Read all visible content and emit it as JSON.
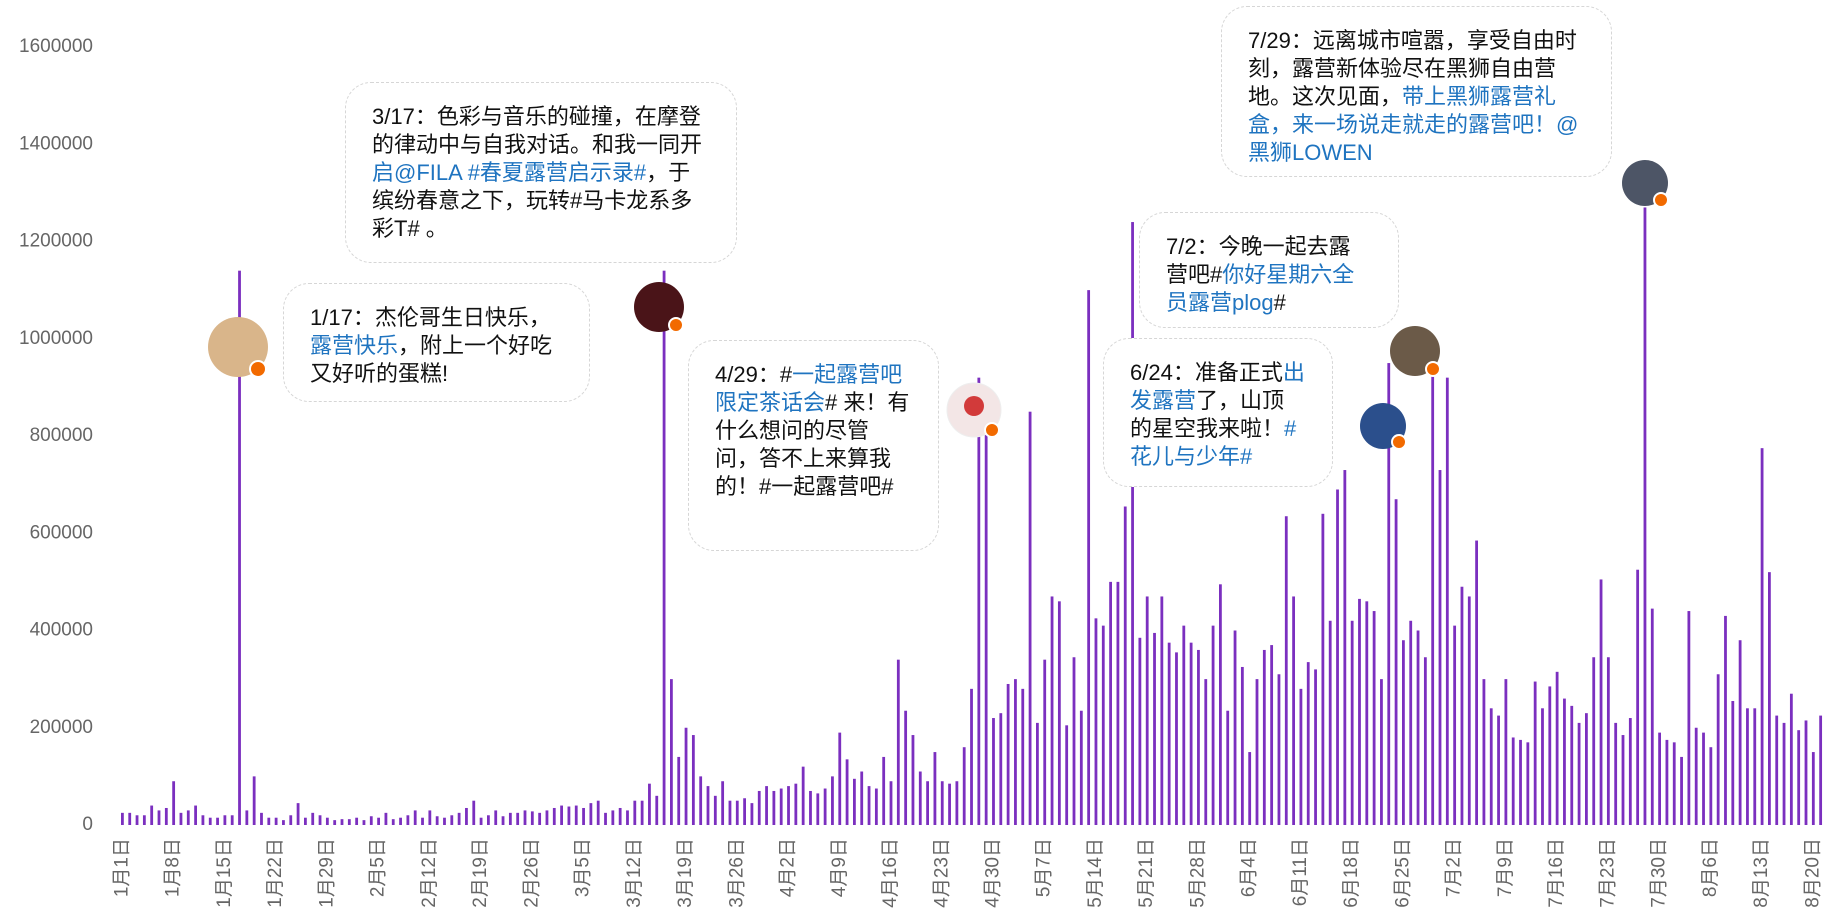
{
  "chart_data": {
    "type": "bar",
    "color": "#7b2fbf",
    "ylim": [
      0,
      1600000
    ],
    "yticks": [
      0,
      200000,
      400000,
      600000,
      800000,
      1000000,
      1200000,
      1400000,
      1600000
    ],
    "categories": [
      "1月1日",
      null,
      null,
      null,
      null,
      null,
      null,
      "1月8日",
      null,
      null,
      null,
      null,
      null,
      null,
      "1月15日",
      null,
      null,
      null,
      null,
      null,
      null,
      "1月22日",
      null,
      null,
      null,
      null,
      null,
      null,
      "1月29日",
      null,
      null,
      null,
      null,
      null,
      null,
      "2月5日",
      null,
      null,
      null,
      null,
      null,
      null,
      "2月12日",
      null,
      null,
      null,
      null,
      null,
      null,
      "2月19日",
      null,
      null,
      null,
      null,
      null,
      null,
      "2月26日",
      null,
      null,
      null,
      null,
      null,
      null,
      "3月5日",
      null,
      null,
      null,
      null,
      null,
      null,
      "3月12日",
      null,
      null,
      null,
      null,
      null,
      null,
      "3月19日",
      null,
      null,
      null,
      null,
      null,
      null,
      "3月26日",
      null,
      null,
      null,
      null,
      null,
      null,
      "4月2日",
      null,
      null,
      null,
      null,
      null,
      null,
      "4月9日",
      null,
      null,
      null,
      null,
      null,
      null,
      "4月16日",
      null,
      null,
      null,
      null,
      null,
      null,
      "4月23日",
      null,
      null,
      null,
      null,
      null,
      null,
      "4月30日",
      null,
      null,
      null,
      null,
      null,
      null,
      "5月7日",
      null,
      null,
      null,
      null,
      null,
      null,
      "5月14日",
      null,
      null,
      null,
      null,
      null,
      null,
      "5月21日",
      null,
      null,
      null,
      null,
      null,
      null,
      "5月28日",
      null,
      null,
      null,
      null,
      null,
      null,
      "6月4日",
      null,
      null,
      null,
      null,
      null,
      null,
      "6月11日",
      null,
      null,
      null,
      null,
      null,
      null,
      "6月18日",
      null,
      null,
      null,
      null,
      null,
      null,
      "6月25日",
      null,
      null,
      null,
      null,
      null,
      null,
      "7月2日",
      null,
      null,
      null,
      null,
      null,
      null,
      "7月9日",
      null,
      null,
      null,
      null,
      null,
      null,
      "7月16日",
      null,
      null,
      null,
      null,
      null,
      null,
      "7月23日",
      null,
      null,
      null,
      null,
      null,
      null,
      "7月30日",
      null,
      null,
      null,
      null,
      null,
      null,
      "8月6日",
      null,
      null,
      null,
      null,
      null,
      null,
      "8月13日",
      null,
      null,
      null,
      null,
      null,
      null,
      "8月20日",
      null
    ],
    "values": [
      25000,
      25000,
      20000,
      20000,
      40000,
      30000,
      35000,
      90000,
      25000,
      30000,
      40000,
      20000,
      15000,
      15000,
      20000,
      20000,
      1140000,
      30000,
      100000,
      25000,
      15000,
      15000,
      10000,
      20000,
      45000,
      15000,
      25000,
      20000,
      15000,
      10000,
      12000,
      12000,
      15000,
      10000,
      18000,
      15000,
      25000,
      12000,
      15000,
      20000,
      30000,
      15000,
      30000,
      18000,
      15000,
      20000,
      25000,
      35000,
      50000,
      15000,
      20000,
      30000,
      18000,
      25000,
      25000,
      30000,
      28000,
      25000,
      30000,
      35000,
      40000,
      38000,
      40000,
      35000,
      45000,
      50000,
      25000,
      30000,
      35000,
      30000,
      50000,
      50000,
      85000,
      60000,
      1140000,
      300000,
      140000,
      200000,
      185000,
      100000,
      80000,
      60000,
      90000,
      50000,
      50000,
      55000,
      45000,
      70000,
      80000,
      70000,
      75000,
      80000,
      85000,
      120000,
      70000,
      65000,
      75000,
      100000,
      190000,
      135000,
      95000,
      110000,
      80000,
      75000,
      140000,
      90000,
      340000,
      235000,
      185000,
      110000,
      90000,
      150000,
      90000,
      85000,
      90000,
      160000,
      280000,
      920000,
      870000,
      220000,
      230000,
      290000,
      300000,
      280000,
      850000,
      210000,
      340000,
      470000,
      460000,
      205000,
      345000,
      235000,
      1100000,
      425000,
      410000,
      500000,
      500000,
      655000,
      1240000,
      385000,
      470000,
      395000,
      470000,
      375000,
      355000,
      410000,
      375000,
      360000,
      300000,
      410000,
      495000,
      235000,
      400000,
      325000,
      150000,
      300000,
      360000,
      370000,
      310000,
      635000,
      470000,
      280000,
      335000,
      320000,
      640000,
      420000,
      690000,
      730000,
      420000,
      465000,
      460000,
      440000,
      300000,
      950000,
      670000,
      380000,
      420000,
      400000,
      345000,
      940000,
      730000,
      920000,
      410000,
      490000,
      470000,
      585000,
      300000,
      240000,
      225000,
      300000,
      180000,
      175000,
      170000,
      295000,
      240000,
      285000,
      315000,
      260000,
      245000,
      210000,
      230000,
      345000,
      505000,
      345000,
      210000,
      185000,
      220000,
      525000,
      1270000,
      445000,
      190000,
      175000,
      170000,
      140000,
      440000,
      200000,
      190000,
      160000,
      310000,
      430000,
      255000,
      380000,
      240000,
      240000,
      775000,
      520000,
      225000,
      210000,
      270000,
      195000,
      215000,
      150000,
      225000
    ],
    "annotations": [
      {
        "parts": [
          {
            "text": "1/17：杰伦哥生日快乐，"
          },
          {
            "text": "露营快乐",
            "link": true
          },
          {
            "text": "，附上一个好吃又好听的蛋糕!"
          }
        ]
      },
      {
        "parts": [
          {
            "text": "3/17：色彩与音乐的碰撞，在摩登的律动中与自我对话。和我一同开"
          },
          {
            "text": "启@FILA #春夏露营启示录#",
            "link": true
          },
          {
            "text": "，于缤纷春意之下，玩转#马卡龙系多彩T# 。"
          }
        ]
      },
      {
        "parts": [
          {
            "text": "4/29：#"
          },
          {
            "text": "一起露营吧限定茶话会",
            "link": true
          },
          {
            "text": "# 来！有什么想问的尽管问，答不上来算我的！#一起露营吧#"
          }
        ]
      },
      {
        "parts": [
          {
            "text": "6/24：准备正式"
          },
          {
            "text": "出发露营",
            "link": true
          },
          {
            "text": "了，山顶的星空我来啦！"
          },
          {
            "text": "#花儿与少年#",
            "link": true
          }
        ]
      },
      {
        "parts": [
          {
            "text": "7/2：今晚一起去露营吧#"
          },
          {
            "text": "你好星期六全员露营plog",
            "link": true
          },
          {
            "text": "#"
          }
        ]
      },
      {
        "parts": [
          {
            "text": "7/29：远离城市喧嚣，享受自由时刻，露营新体验尽在黑狮自由营地。这次见面，"
          },
          {
            "text": "带上黑狮露营礼盒，来一场说走就走的露营吧！@黑狮LOWEN",
            "link": true
          }
        ]
      }
    ]
  }
}
